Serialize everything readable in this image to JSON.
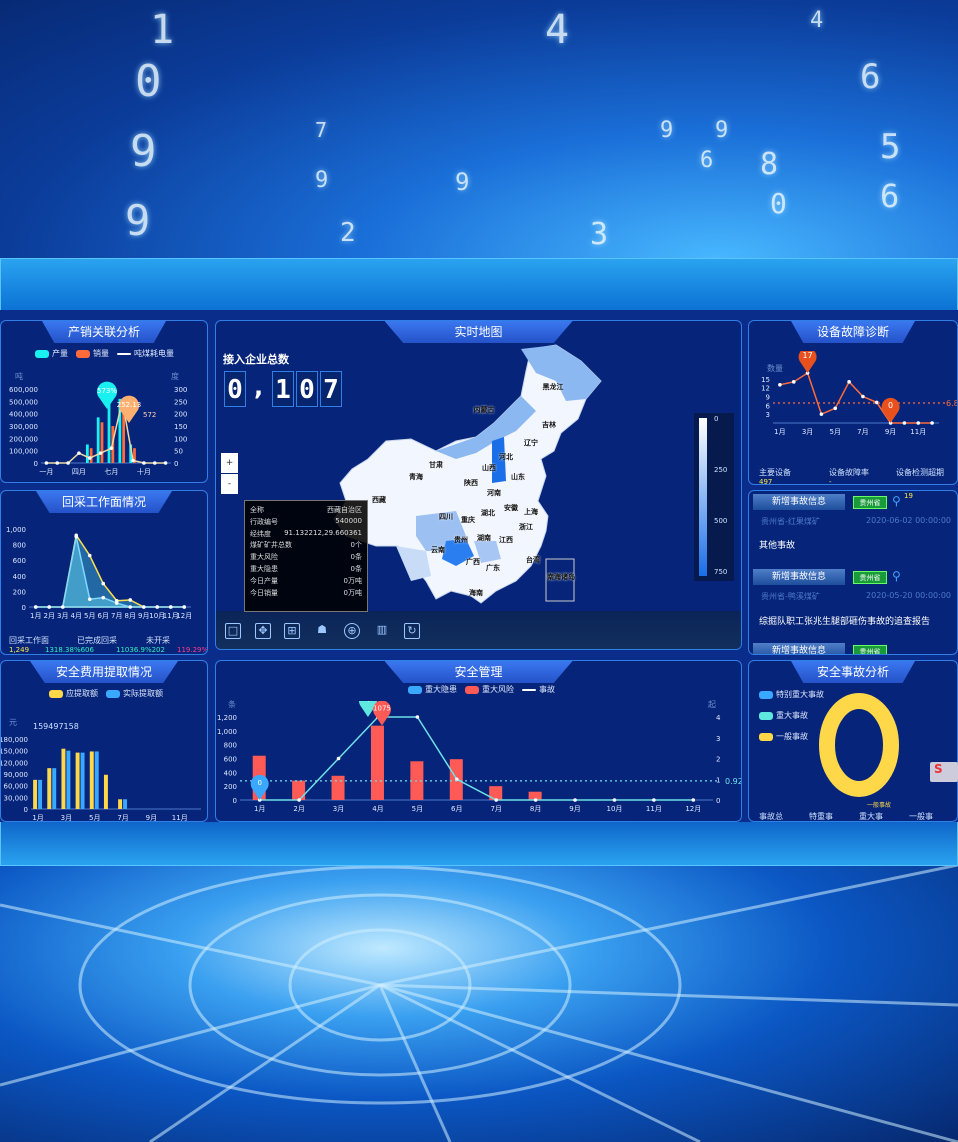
{
  "background": {
    "digits": [
      "1",
      "0",
      "9",
      "9",
      "7",
      "9",
      "2",
      "9",
      "4",
      "9",
      "6",
      "9",
      "8",
      "0",
      "6",
      "5",
      "6",
      "4",
      "3"
    ]
  },
  "colors": {
    "panel": "#06257a",
    "accent": "#2f7fe6",
    "cyan": "#19f0f0",
    "orange": "#ff6b3a",
    "yellow": "#ffd84a",
    "red": "#ff5a55",
    "blue": "#3aa8ff"
  },
  "production": {
    "title": "产销关联分析",
    "legend": [
      "产量",
      "销量",
      "吨煤耗电量"
    ],
    "left_unit": "吨",
    "right_unit": "度",
    "markers": [
      "573%",
      "252.13",
      "572"
    ]
  },
  "mining": {
    "title": "回采工作面情况",
    "stats": [
      {
        "label": "回采工作面",
        "value": "1,249"
      },
      {
        "label": "已完成回采",
        "value": "1318.38%606"
      },
      {
        "label": "未开采",
        "value": "11036.9%202"
      }
    ],
    "extra": "119.29%"
  },
  "fees": {
    "title": "安全费用提取情况",
    "legend": [
      "应提取额",
      "实际提取额"
    ],
    "unit": "元",
    "marker": "159497158"
  },
  "map": {
    "title": "实时地图",
    "counter_label": "接入企业总数",
    "counter_digits": [
      "0",
      ",",
      "1",
      "0",
      "7"
    ],
    "tooltip": [
      [
        "全称",
        "西藏自治区"
      ],
      [
        "行政编号",
        "540000"
      ],
      [
        "经纬度",
        "91.132212,29.660361"
      ],
      [
        "煤矿矿井总数",
        "0个"
      ],
      [
        "重大风险",
        "0条"
      ],
      [
        "重大隐患",
        "0条"
      ],
      [
        "今日产量",
        "0万吨"
      ],
      [
        "今日销量",
        "0万吨"
      ]
    ],
    "zoom_in": "+",
    "zoom_out": "-",
    "legend_ticks": [
      "0",
      "250",
      "500",
      "750"
    ],
    "provinces": [
      "黑龙江",
      "内蒙古",
      "吉林",
      "辽宁",
      "河北",
      "山西",
      "山东",
      "甘肃",
      "青海",
      "陕西",
      "河南",
      "西藏",
      "四川",
      "湖北",
      "安徽",
      "上海",
      "重庆",
      "浙江",
      "贵州",
      "湖南",
      "江西",
      "云南",
      "广西",
      "广东",
      "台湾",
      "南海诸岛",
      "海南"
    ],
    "tools": [
      "fullscreen-icon",
      "expand-icon",
      "collapse-icon",
      "bag-icon",
      "globe-icon",
      "building-icon",
      "refresh-icon"
    ]
  },
  "safety": {
    "title": "安全管理",
    "legend": [
      "重大隐患",
      "重大风险",
      "事故"
    ],
    "left_unit": "条",
    "right_unit": "起",
    "markers": [
      "0",
      "4",
      "1075"
    ],
    "avg_label": "0.92"
  },
  "equipment": {
    "title": "设备故障诊断",
    "unit": "数量",
    "markers": [
      "17",
      "0"
    ],
    "avg_label": "6.8",
    "stats": [
      {
        "label": "主要设备",
        "value": "497"
      },
      {
        "label": "设备故障率",
        "value": "-"
      },
      {
        "label": "设备检测超期",
        "value": "19"
      }
    ]
  },
  "events": [
    {
      "head": "新增事故信息",
      "tag": "贵州省",
      "source": "贵州省-红果煤矿",
      "date": "2020-06-02 00:00:00",
      "text": "其他事故"
    },
    {
      "head": "新增事故信息",
      "tag": "贵州省",
      "source": "贵州省-鸭溪煤矿",
      "date": "2020-05-20 00:00:00",
      "text": "综掘队职工张兆生腿部砸伤事故的追查报告"
    },
    {
      "head": "新增事故信息",
      "tag": "贵州省"
    }
  ],
  "accident": {
    "title": "安全事故分析",
    "legend": [
      "特别重大事故",
      "重大事故",
      "一般事故"
    ],
    "donut_label": "一般事故",
    "stats": [
      "事故总",
      "特重事",
      "重大事",
      "一般事"
    ],
    "side_badge": "S"
  },
  "chart_data": [
    {
      "type": "bar",
      "id": "c1",
      "categories": [
        "一月",
        "二月",
        "三月",
        "四月",
        "五月",
        "六月",
        "七月",
        "八月",
        "九月",
        "十月",
        "十一月",
        "十二月"
      ],
      "tick_labels": [
        "一月",
        "四月",
        "七月",
        "十月"
      ],
      "ylim": [
        0,
        600000
      ],
      "y2lim": [
        0,
        300
      ],
      "yticks": [
        0,
        100000,
        200000,
        300000,
        400000,
        500000,
        600000
      ],
      "y2ticks": [
        0,
        50,
        100,
        150,
        200,
        250,
        300
      ],
      "series": [
        {
          "name": "产量",
          "type": "bar",
          "values": [
            0,
            0,
            0,
            0,
            150000,
            370000,
            573000,
            520000,
            150000,
            0,
            0,
            0
          ]
        },
        {
          "name": "销量",
          "type": "bar",
          "values": [
            0,
            0,
            0,
            0,
            120000,
            330000,
            300000,
            430000,
            120000,
            0,
            0,
            0
          ]
        },
        {
          "name": "吨煤耗电量",
          "type": "line",
          "axis": 2,
          "values": [
            0,
            0,
            0,
            40,
            20,
            40,
            60,
            252.13,
            10,
            0,
            0,
            0
          ]
        }
      ]
    },
    {
      "type": "area",
      "id": "c2",
      "categories": [
        "1月",
        "2月",
        "3月",
        "4月",
        "5月",
        "6月",
        "7月",
        "8月",
        "9月",
        "10月",
        "11月",
        "12月"
      ],
      "ylim": [
        0,
        1000
      ],
      "yticks": [
        0,
        200,
        400,
        600,
        800,
        1000
      ],
      "series": [
        {
          "type": "area",
          "values": [
            0,
            0,
            0,
            920,
            660,
            300,
            80,
            90,
            0,
            0,
            0,
            0
          ]
        },
        {
          "type": "area",
          "values": [
            0,
            0,
            0,
            900,
            100,
            120,
            50,
            0,
            0,
            0,
            0,
            0
          ]
        }
      ]
    },
    {
      "type": "bar",
      "id": "c3",
      "categories": [
        "1月",
        "2月",
        "3月",
        "4月",
        "5月",
        "6月",
        "7月",
        "8月",
        "9月",
        "10月",
        "11月",
        "12月"
      ],
      "tick_labels": [
        "1月",
        "3月",
        "5月",
        "7月",
        "9月",
        "11月"
      ],
      "ylim": [
        0,
        180000
      ],
      "yticks": [
        0,
        30000,
        60000,
        90000,
        120000,
        150000,
        180000
      ],
      "series": [
        {
          "name": "应提取额",
          "type": "bar",
          "values": [
            75000,
            105000,
            155000,
            145000,
            148000,
            88000,
            25000,
            0,
            0,
            0,
            0,
            0
          ]
        },
        {
          "name": "实际提取额",
          "type": "bar",
          "values": [
            75000,
            105000,
            150000,
            145000,
            148000,
            0,
            25000,
            0,
            0,
            0,
            0,
            0
          ]
        }
      ]
    },
    {
      "type": "bar",
      "id": "c4",
      "categories": [
        "1月",
        "2月",
        "3月",
        "4月",
        "5月",
        "6月",
        "7月",
        "8月",
        "9月",
        "10月",
        "11月",
        "12月"
      ],
      "ylim": [
        0,
        1200
      ],
      "y2lim": [
        0,
        4
      ],
      "yticks": [
        0,
        200,
        400,
        600,
        800,
        1000,
        1200
      ],
      "y2ticks": [
        0,
        1,
        2,
        3,
        4
      ],
      "series": [
        {
          "name": "重大风险",
          "type": "bar",
          "values": [
            640,
            280,
            350,
            1075,
            560,
            590,
            200,
            120,
            0,
            0,
            0,
            0
          ]
        },
        {
          "name": "事故",
          "type": "line",
          "axis": 2,
          "values": [
            0,
            0,
            2,
            4,
            4,
            1,
            0,
            0,
            0,
            0,
            0,
            0
          ]
        }
      ],
      "average": 0.92
    },
    {
      "type": "line",
      "id": "c5",
      "categories": [
        "1月",
        "2月",
        "3月",
        "4月",
        "5月",
        "6月",
        "7月",
        "8月",
        "9月",
        "10月",
        "11月",
        "12月"
      ],
      "tick_labels": [
        "1月",
        "3月",
        "5月",
        "7月",
        "9月",
        "11月"
      ],
      "ylim": [
        0,
        17
      ],
      "yticks": [
        3,
        6,
        9,
        12,
        15
      ],
      "series": [
        {
          "name": "数量",
          "type": "line",
          "values": [
            13,
            14,
            17,
            3,
            5,
            14,
            9,
            7,
            0,
            0,
            0,
            0
          ]
        }
      ],
      "average": 6.8
    },
    {
      "type": "pie",
      "id": "c6",
      "categories": [
        "特别重大事故",
        "重大事故",
        "一般事故"
      ],
      "values": [
        0,
        0,
        1
      ]
    }
  ]
}
